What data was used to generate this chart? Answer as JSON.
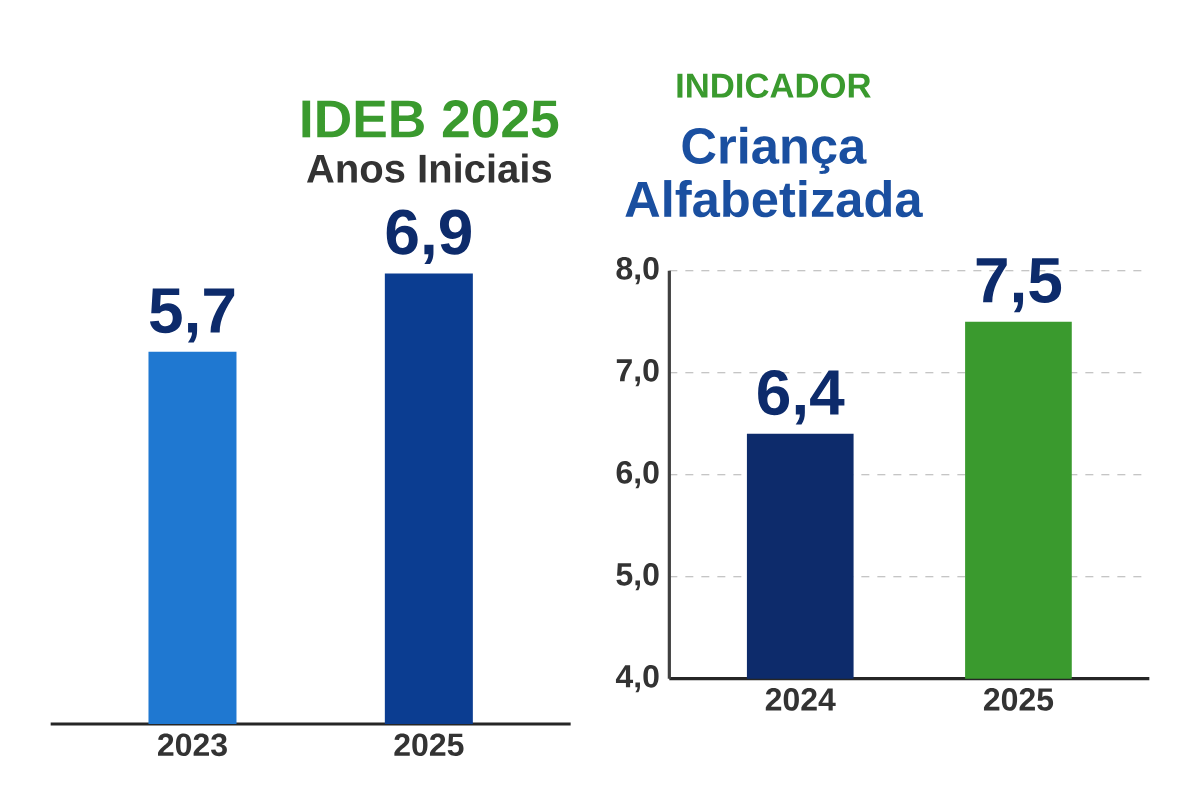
{
  "chart_data": [
    {
      "type": "bar",
      "title": "IDEB 2025",
      "subtitle": "Anos Iniciais",
      "categories": [
        "2023",
        "2025"
      ],
      "values": [
        5.7,
        6.9
      ],
      "value_labels": [
        "5,7",
        "6,9"
      ],
      "colors": [
        "#1f78d1",
        "#0b3d91"
      ],
      "grid": "y",
      "tick_labels": "x"
    },
    {
      "type": "bar",
      "title": "INDICADOR",
      "subtitle": "Criança Alfabetizada",
      "categories": [
        "2024",
        "2025"
      ],
      "values": [
        6.4,
        7.5
      ],
      "value_labels": [
        "6,4",
        "7,5"
      ],
      "colors": [
        "#0d2b6b",
        "#3a9a2e"
      ],
      "ylim": [
        4,
        8
      ],
      "yticks": [
        {
          "value": 4,
          "label": "4,0"
        },
        {
          "value": 5,
          "label": "5,0"
        },
        {
          "value": 6,
          "label": "6,0"
        },
        {
          "value": 7,
          "label": "7,0"
        },
        {
          "value": 8,
          "label": "8,0"
        }
      ],
      "grid": "y"
    }
  ]
}
